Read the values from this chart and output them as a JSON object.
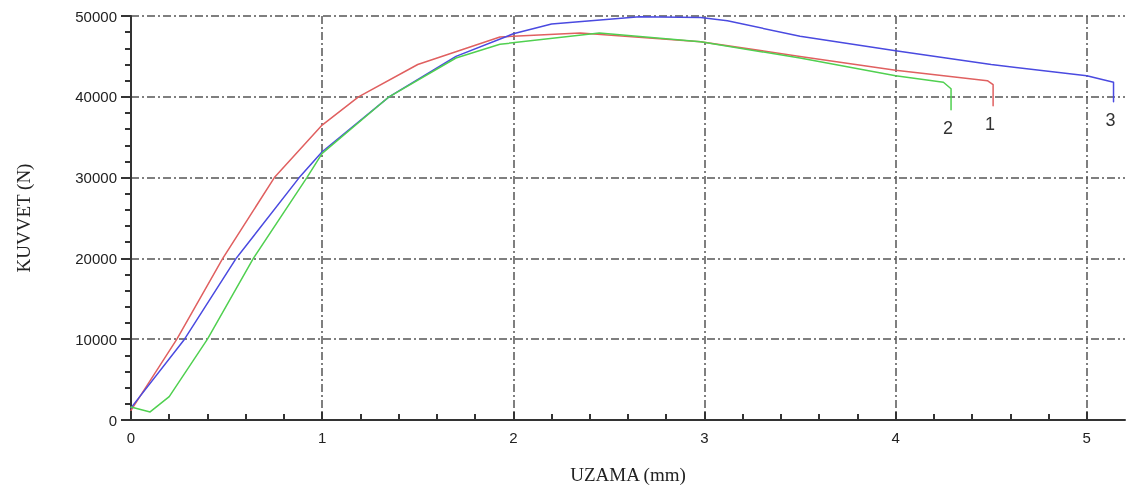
{
  "chart_data": {
    "type": "line",
    "xlabel": "UZAMA (mm)",
    "ylabel": "KUVVET (N)",
    "xlim": [
      0,
      5.2
    ],
    "xticks": [
      0,
      1,
      2,
      3,
      4,
      5
    ],
    "ylim": [
      0,
      50000
    ],
    "yticks": [
      0,
      10000,
      20000,
      30000,
      40000,
      50000
    ],
    "grid": true,
    "marker": "none",
    "line_style": "solid",
    "series": [
      {
        "color": "#e06060",
        "x": [
          0,
          0.24,
          0.48,
          0.75,
          1,
          1.19,
          1.5,
          1.93,
          2.35,
          2.98,
          3.5,
          4,
          4.48,
          4.51,
          4.51
        ],
        "values": [
          1200,
          10000,
          20000,
          30000,
          36500,
          40000,
          44000,
          47400,
          47900,
          46800,
          45000,
          43300,
          42000,
          41500,
          38900
        ]
      },
      {
        "color": "#4a4ae0",
        "x": [
          0,
          0.28,
          0.55,
          0.88,
          1,
          1.35,
          1.7,
          2,
          2.2,
          2.66,
          2.98,
          3.12,
          3.5,
          4,
          4.5,
          5,
          5.14,
          5.14
        ],
        "values": [
          1500,
          10000,
          20000,
          30000,
          33200,
          40000,
          45000,
          47800,
          49000,
          49900,
          49800,
          49400,
          47500,
          45700,
          44000,
          42600,
          41800,
          39400
        ]
      },
      {
        "color": "#50d050",
        "x": [
          0,
          0.1,
          0.2,
          0.4,
          0.64,
          0.92,
          1,
          1.35,
          1.7,
          1.93,
          2.45,
          2.98,
          3.5,
          4,
          4.25,
          4.29,
          4.29
        ],
        "values": [
          1600,
          1000,
          2900,
          10000,
          20000,
          30000,
          33000,
          40000,
          44800,
          46500,
          47900,
          46800,
          44800,
          42600,
          41800,
          41000,
          38400
        ]
      }
    ],
    "annotations": [
      {
        "text": "2",
        "x": 4.29,
        "y": 38400
      },
      {
        "text": "1",
        "x": 4.51,
        "y": 38900
      },
      {
        "text": "3",
        "x": 5.14,
        "y": 39400
      }
    ]
  }
}
